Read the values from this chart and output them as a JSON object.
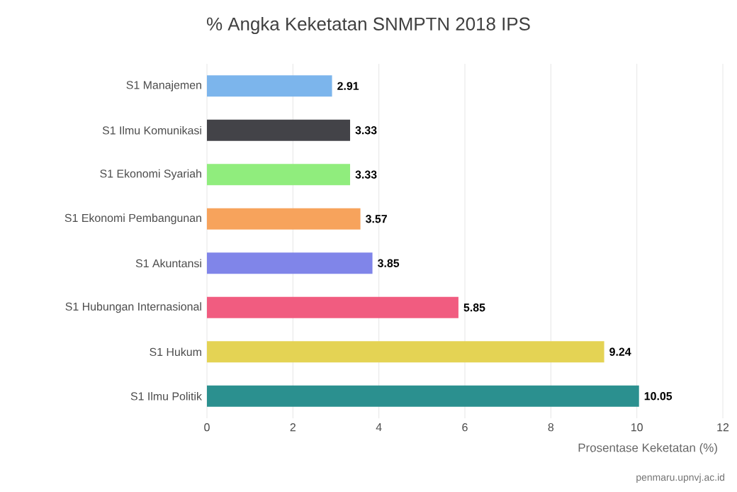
{
  "chart_data": {
    "type": "bar",
    "orientation": "horizontal",
    "title": "% Angka Keketatan SNMPTN 2018 IPS",
    "categories": [
      "S1 Manajemen",
      "S1 Ilmu Komunikasi",
      "S1 Ekonomi Syariah",
      "S1 Ekonomi Pembangunan",
      "S1 Akuntansi",
      "S1 Hubungan Internasional",
      "S1 Hukum",
      "S1 Ilmu Politik"
    ],
    "values": [
      2.91,
      3.33,
      3.33,
      3.57,
      3.85,
      5.85,
      9.24,
      10.05
    ],
    "colors": [
      "#7cb5ec",
      "#434348",
      "#90ed7d",
      "#f7a35c",
      "#8085e9",
      "#f15c80",
      "#e4d354",
      "#2b908f"
    ],
    "xlim": [
      0,
      12
    ],
    "xticks": [
      0,
      2,
      4,
      6,
      8,
      10,
      12
    ],
    "xlabel": "Prosentase Keketatan (%)",
    "grid": "x",
    "data_labels": true,
    "annotations": [
      "penmaru.upnvj.ac.id"
    ]
  }
}
